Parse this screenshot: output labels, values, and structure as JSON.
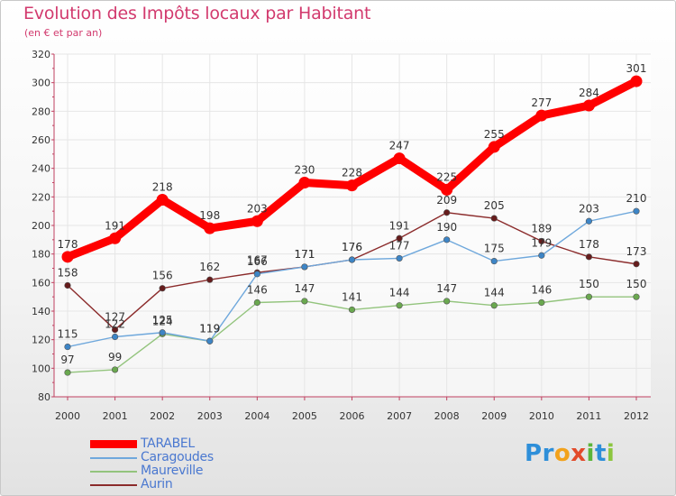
{
  "header": {
    "title": "Evolution des Impôts locaux par Habitant",
    "subtitle": "(en € et par an)"
  },
  "logo": {
    "parts": [
      {
        "text": "P",
        "color": "#2e8fd9"
      },
      {
        "text": "r",
        "color": "#2e8fd9"
      },
      {
        "text": "o",
        "color": "#f2a21c"
      },
      {
        "text": "x",
        "color": "#e24a2a"
      },
      {
        "text": "i",
        "color": "#5bb53a"
      },
      {
        "text": "t",
        "color": "#2e8fd9"
      },
      {
        "text": "i",
        "color": "#8cc63f"
      }
    ]
  },
  "chart_data": {
    "type": "line",
    "title": "Evolution des Impôts locaux par Habitant",
    "subtitle": "(en € et par an)",
    "xlabel": "",
    "ylabel": "",
    "categories": [
      "2000",
      "2001",
      "2002",
      "2003",
      "2004",
      "2005",
      "2006",
      "2007",
      "2008",
      "2009",
      "2010",
      "2011",
      "2012"
    ],
    "ylim": [
      80,
      320
    ],
    "yticks": [
      80,
      100,
      120,
      140,
      160,
      180,
      200,
      220,
      240,
      260,
      280,
      300,
      320
    ],
    "grid": true,
    "legend_position": "bottom-left",
    "series": [
      {
        "name": "TARABEL",
        "color": "#ff0000",
        "point_color": "#ff0000",
        "emphasis": "thick",
        "values": [
          178,
          191,
          218,
          198,
          203,
          230,
          228,
          247,
          225,
          255,
          277,
          284,
          301
        ],
        "labels": [
          "178",
          "191",
          "218",
          "198",
          "203",
          "230",
          "228",
          "247",
          "225",
          "255",
          "277",
          "284",
          "301"
        ]
      },
      {
        "name": "Caragoudes",
        "color": "#6fa8dc",
        "point_color": "#3d85c6",
        "emphasis": "thin",
        "values": [
          115,
          122,
          125,
          119,
          166,
          171,
          176,
          177,
          190,
          175,
          179,
          203,
          210
        ],
        "labels": [
          "115",
          "122",
          "125",
          "119",
          "166",
          "171",
          "176",
          "177",
          "190",
          "175",
          "179",
          "203",
          "210"
        ]
      },
      {
        "name": "Maureville",
        "color": "#93c47d",
        "point_color": "#6aa84f",
        "emphasis": "thin",
        "values": [
          97,
          99,
          124,
          119,
          146,
          147,
          141,
          144,
          147,
          144,
          146,
          150,
          150
        ],
        "labels": [
          "97",
          "99",
          "124",
          "119",
          "146",
          "147",
          "141",
          "144",
          "147",
          "144",
          "146",
          "150",
          "150"
        ]
      },
      {
        "name": "Aurin",
        "color": "#8b2b2b",
        "point_color": "#661c1c",
        "emphasis": "thin",
        "values": [
          158,
          127,
          156,
          162,
          167,
          171,
          176,
          191,
          209,
          205,
          189,
          178,
          173
        ],
        "labels": [
          "158",
          "127",
          "156",
          "162",
          "167",
          "171",
          "176",
          "191",
          "209",
          "205",
          "189",
          "178",
          "173"
        ]
      }
    ]
  }
}
